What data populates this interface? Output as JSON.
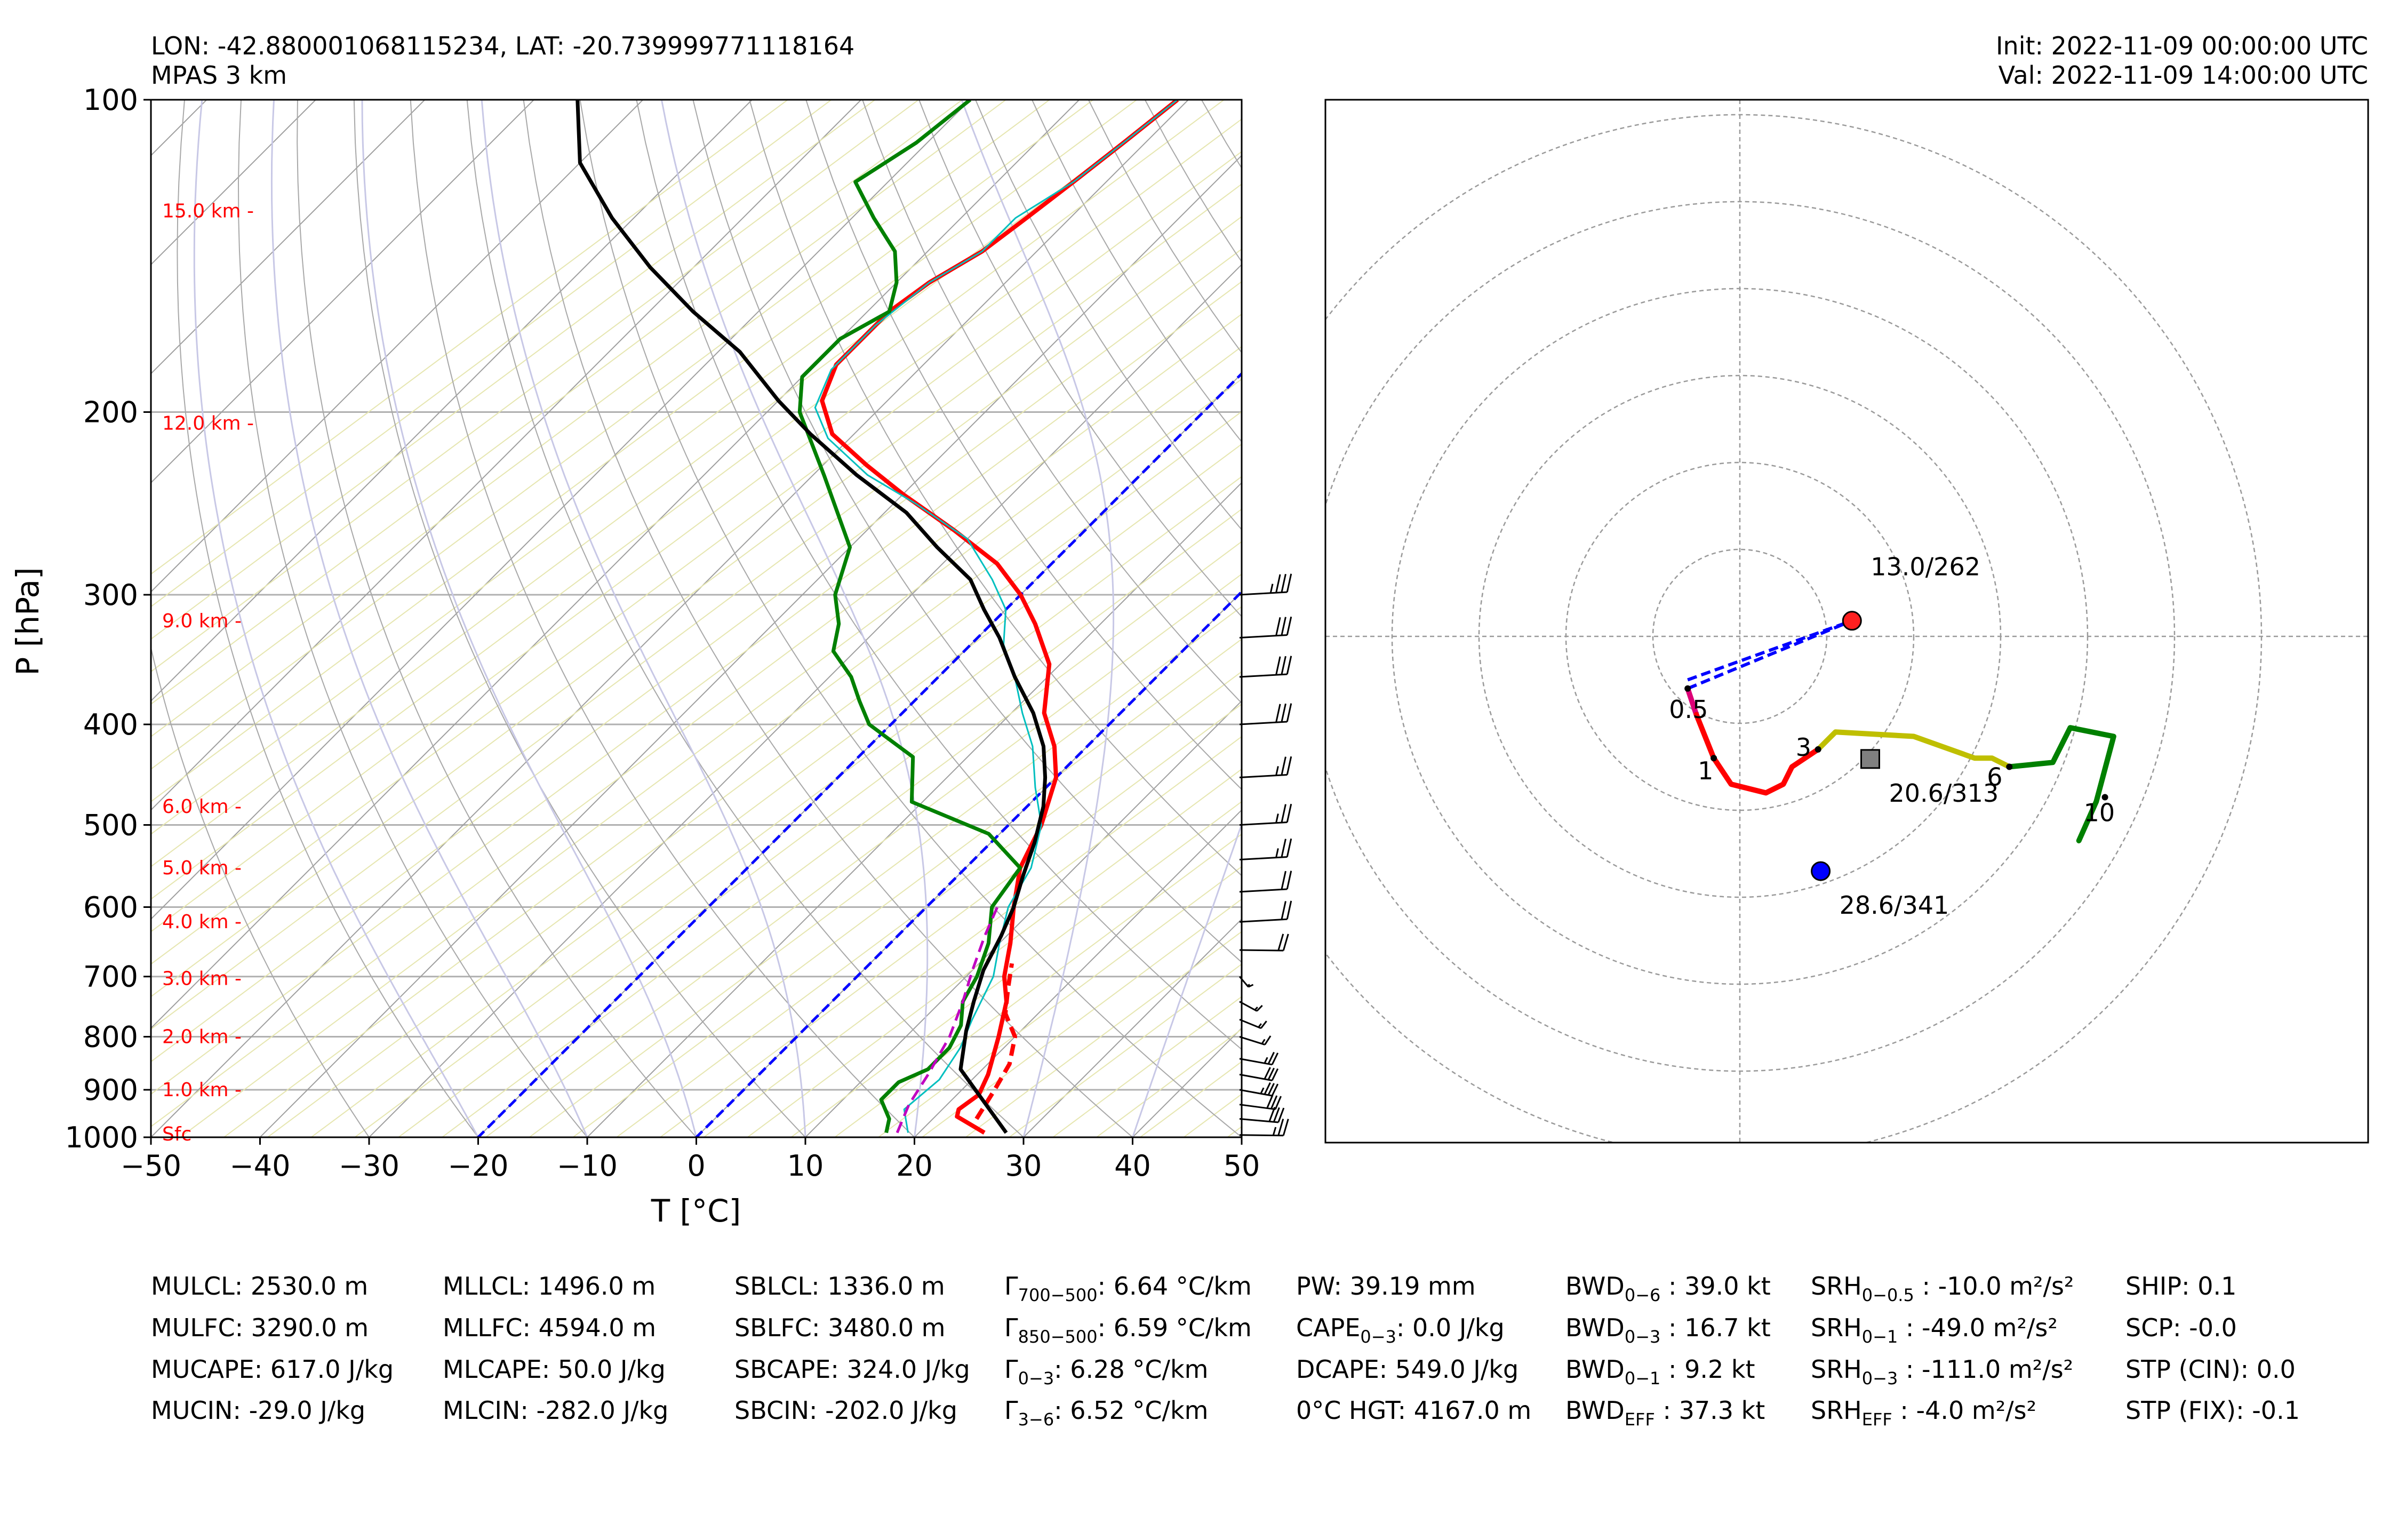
{
  "header": {
    "location": "LON: -42.880001068115234, LAT: -20.739999771118164",
    "model": "MPAS 3 km",
    "init": "Init: 2022-11-09 00:00:00 UTC",
    "valid": "Val: 2022-11-09 14:00:00 UTC"
  },
  "colors": {
    "temperature": "#ff0000",
    "dewpoint": "#008000",
    "parcel": "#000000",
    "virtual_temperature": "#00bfbf",
    "wetbulb": "#c000c0",
    "freezing_isotherm": "#0000ff",
    "height_labels": "#ff0000"
  },
  "chart_data": [
    {
      "type": "line",
      "name": "skew-t",
      "xlabel": "T [°C]",
      "ylabel": "P [hPa]",
      "xlim": [
        -50,
        50
      ],
      "ylim": [
        1000,
        100
      ],
      "y_scale": "log",
      "skew_degrees": 45,
      "x_ticks": [
        -50,
        -40,
        -30,
        -20,
        -10,
        0,
        10,
        20,
        30,
        40,
        50
      ],
      "x_tick_labels": [
        "−50",
        "−40",
        "−30",
        "−20",
        "−10",
        "0",
        "10",
        "20",
        "30",
        "40",
        "50"
      ],
      "y_ticks": [
        100,
        200,
        300,
        400,
        500,
        600,
        700,
        800,
        900,
        1000
      ],
      "y_tick_labels": [
        "100",
        "200",
        "300",
        "400",
        "500",
        "600",
        "700",
        "800",
        "900",
        "1000"
      ],
      "height_labels": [
        {
          "p": 993,
          "label": "Sfc"
        },
        {
          "p": 900,
          "label": "1.0 km -"
        },
        {
          "p": 800,
          "label": "2.0 km -"
        },
        {
          "p": 703,
          "label": "3.0 km -"
        },
        {
          "p": 620,
          "label": "4.0 km -"
        },
        {
          "p": 550,
          "label": "5.0 km -"
        },
        {
          "p": 480,
          "label": "6.0 km -"
        },
        {
          "p": 318,
          "label": "9.0 km -"
        },
        {
          "p": 205,
          "label": "12.0 km -"
        },
        {
          "p": 128,
          "label": "15.0 km -"
        }
      ],
      "series": [
        {
          "key": "temperature",
          "style": "solid",
          "points": [
            [
              26,
              990
            ],
            [
              22,
              955
            ],
            [
              21.5,
              940
            ],
            [
              22,
              910
            ],
            [
              21,
              870
            ],
            [
              18.5,
              800
            ],
            [
              16,
              740
            ],
            [
              13.5,
              700
            ],
            [
              11,
              650
            ],
            [
              8,
              600
            ],
            [
              5,
              550
            ],
            [
              3,
              500
            ],
            [
              0,
              450
            ],
            [
              -3,
              420
            ],
            [
              -7,
              390
            ],
            [
              -11,
              350
            ],
            [
              -16,
              320
            ],
            [
              -20,
              300
            ],
            [
              -25,
              280
            ],
            [
              -32,
              260
            ],
            [
              -40,
              240
            ],
            [
              -46,
              225
            ],
            [
              -52,
              210
            ],
            [
              -56,
              195
            ],
            [
              -58,
              180
            ],
            [
              -58,
              160
            ],
            [
              -57,
              150
            ],
            [
              -55,
              140
            ],
            [
              -54,
              130
            ],
            [
              -53,
              120
            ],
            [
              -52,
              110
            ],
            [
              -51,
              100
            ]
          ]
        },
        {
          "key": "temperature",
          "style": "dashed",
          "points": [
            [
              24,
              960
            ],
            [
              23,
              900
            ],
            [
              22,
              850
            ],
            [
              20,
              800
            ],
            [
              17,
              760
            ],
            [
              15,
              720
            ],
            [
              13,
              680
            ]
          ]
        },
        {
          "key": "virtual_temperature",
          "style": "solid",
          "points": [
            [
              19,
              990
            ],
            [
              16.5,
              940
            ],
            [
              17,
              880
            ],
            [
              16,
              820
            ],
            [
              14.5,
              770
            ],
            [
              12.5,
              700
            ],
            [
              10,
              650
            ],
            [
              7.5,
              600
            ],
            [
              6,
              550
            ],
            [
              3,
              500
            ],
            [
              -1,
              460
            ],
            [
              -5,
              420
            ],
            [
              -9,
              390
            ],
            [
              -13,
              360
            ],
            [
              -17,
              335
            ],
            [
              -20,
              310
            ],
            [
              -24,
              290
            ],
            [
              -30,
              265
            ],
            [
              -38,
              245
            ],
            [
              -45,
              230
            ],
            [
              -52,
              212
            ],
            [
              -56,
              198
            ],
            [
              -58,
              182
            ],
            [
              -58,
              165
            ],
            [
              -57,
              150
            ],
            [
              -55,
              140
            ],
            [
              -55,
              130
            ],
            [
              -53,
              120
            ],
            [
              -52,
              110
            ],
            [
              -51,
              100
            ]
          ]
        },
        {
          "key": "dewpoint",
          "style": "solid",
          "points": [
            [
              17,
              990
            ],
            [
              16,
              960
            ],
            [
              13.5,
              920
            ],
            [
              13.5,
              885
            ],
            [
              15,
              860
            ],
            [
              15,
              820
            ],
            [
              14,
              780
            ],
            [
              12,
              740
            ],
            [
              11,
              700
            ],
            [
              9,
              650
            ],
            [
              6,
              600
            ],
            [
              5,
              550
            ],
            [
              -1,
              510
            ],
            [
              -11,
              475
            ],
            [
              -15,
              430
            ],
            [
              -22,
              400
            ],
            [
              -25,
              380
            ],
            [
              -28,
              360
            ],
            [
              -32,
              340
            ],
            [
              -34,
              320
            ],
            [
              -37,
              300
            ],
            [
              -40,
              270
            ],
            [
              -49,
              230
            ],
            [
              -57,
              200
            ],
            [
              -60,
              185
            ],
            [
              -60,
              170
            ],
            [
              -58,
              160
            ],
            [
              -60,
              150
            ],
            [
              -63,
              140
            ],
            [
              -68,
              130
            ],
            [
              -73,
              120
            ],
            [
              -71,
              110
            ],
            [
              -70,
              100
            ]
          ]
        },
        {
          "key": "parcel",
          "style": "solid",
          "points": [
            [
              28,
              990
            ],
            [
              18,
              860
            ],
            [
              15,
              790
            ],
            [
              13,
              740
            ],
            [
              11,
              690
            ],
            [
              9.5,
              640
            ],
            [
              8,
              600
            ],
            [
              6,
              560
            ],
            [
              4,
              520
            ],
            [
              1.5,
              480
            ],
            [
              -1,
              450
            ],
            [
              -4,
              420
            ],
            [
              -8,
              390
            ],
            [
              -13,
              360
            ],
            [
              -18,
              330
            ],
            [
              -22,
              310
            ],
            [
              -26,
              290
            ],
            [
              -32,
              270
            ],
            [
              -38,
              250
            ],
            [
              -46,
              230
            ],
            [
              -54,
              210
            ],
            [
              -60,
              195
            ],
            [
              -68,
              175
            ],
            [
              -76,
              160
            ],
            [
              -84,
              145
            ],
            [
              -92,
              130
            ],
            [
              -100,
              115
            ],
            [
              -106,
              100
            ]
          ]
        },
        {
          "key": "wetbulb",
          "style": "dashed",
          "points": [
            [
              18,
              990
            ],
            [
              16.5,
              930
            ],
            [
              15.5,
              870
            ],
            [
              14,
              800
            ],
            [
              12,
              740
            ],
            [
              10,
              690
            ],
            [
              8,
              640
            ],
            [
              6.5,
              600
            ]
          ]
        }
      ],
      "freezing_isotherms_degC": [
        0,
        -20
      ],
      "wind_barbs": [
        {
          "p": 995,
          "speed_kt": 25,
          "dir": 300
        },
        {
          "p": 960,
          "speed_kt": 30,
          "dir": 310
        },
        {
          "p": 930,
          "speed_kt": 30,
          "dir": 315
        },
        {
          "p": 900,
          "speed_kt": 35,
          "dir": 320
        },
        {
          "p": 870,
          "speed_kt": 30,
          "dir": 320
        },
        {
          "p": 840,
          "speed_kt": 25,
          "dir": 320
        },
        {
          "p": 800,
          "speed_kt": 15,
          "dir": 330
        },
        {
          "p": 770,
          "speed_kt": 15,
          "dir": 335
        },
        {
          "p": 740,
          "speed_kt": 15,
          "dir": 340
        },
        {
          "p": 700,
          "speed_kt": 15,
          "dir": 350
        },
        {
          "p": 660,
          "speed_kt": 20,
          "dir": 300
        },
        {
          "p": 620,
          "speed_kt": 20,
          "dir": 290
        },
        {
          "p": 580,
          "speed_kt": 20,
          "dir": 290
        },
        {
          "p": 540,
          "speed_kt": 25,
          "dir": 290
        },
        {
          "p": 500,
          "speed_kt": 25,
          "dir": 290
        },
        {
          "p": 450,
          "speed_kt": 25,
          "dir": 290
        },
        {
          "p": 400,
          "speed_kt": 30,
          "dir": 290
        },
        {
          "p": 360,
          "speed_kt": 30,
          "dir": 290
        },
        {
          "p": 330,
          "speed_kt": 30,
          "dir": 290
        },
        {
          "p": 300,
          "speed_kt": 35,
          "dir": 290
        }
      ]
    },
    {
      "type": "line",
      "name": "hodograph",
      "grid": "polar dashed",
      "ring_spacing_kt": 10,
      "rings": [
        10,
        20,
        30,
        40,
        50,
        60
      ],
      "range_kt": 60,
      "segments": [
        {
          "color": "#dd0077",
          "points": [
            [
              -6,
              -6
            ],
            [
              -5,
              -9
            ]
          ]
        },
        {
          "color": "#ff0000",
          "points": [
            [
              -5,
              -9
            ],
            [
              -3,
              -14
            ],
            [
              -1,
              -17
            ],
            [
              3,
              -18
            ],
            [
              5,
              -17
            ],
            [
              6,
              -15
            ],
            [
              9,
              -13
            ]
          ]
        },
        {
          "color": "#bfbf00",
          "points": [
            [
              9,
              -13
            ],
            [
              11,
              -11
            ],
            [
              20,
              -11.5
            ],
            [
              27,
              -14
            ],
            [
              29,
              -14
            ],
            [
              31,
              -15
            ]
          ]
        },
        {
          "color": "#008000",
          "points": [
            [
              31,
              -15
            ],
            [
              36,
              -14.5
            ],
            [
              38,
              -10.5
            ],
            [
              43,
              -11.5
            ],
            [
              41,
              -19
            ],
            [
              39,
              -23.5
            ]
          ]
        }
      ],
      "height_markers": [
        {
          "label": "0.5",
          "u": -6,
          "v": -6
        },
        {
          "label": "1",
          "u": -3,
          "v": -14
        },
        {
          "label": "3",
          "u": 9,
          "v": -13
        },
        {
          "label": "6",
          "u": 31,
          "v": -15
        },
        {
          "label": "10",
          "u": 42,
          "v": -18.5
        }
      ],
      "storm_motion": [
        {
          "kind": "left",
          "label": "13.0/262",
          "u": 12.9,
          "v": 1.8,
          "color": "#ff2020"
        },
        {
          "kind": "right",
          "label": "28.6/341",
          "u": 9.3,
          "v": -27.0,
          "color": "#0000ff"
        },
        {
          "kind": "mean",
          "label": "20.6/313",
          "u": 15.0,
          "v": -14.1,
          "color": "#808080"
        }
      ],
      "shear_vectors": [
        {
          "from": [
            -6,
            -6
          ],
          "to": [
            12.9,
            1.8
          ],
          "color": "#0000ff"
        },
        {
          "from": [
            -6,
            -5
          ],
          "to": [
            12.9,
            1.8
          ],
          "color": "#0000ff"
        }
      ]
    }
  ],
  "params": [
    [
      "MULCL: 2530.0 m",
      "MULFC: 3290.0 m",
      "MUCAPE: 617.0 J/kg",
      "MUCIN: -29.0 J/kg"
    ],
    [
      "MLLCL: 1496.0 m",
      "MLLFC: 4594.0 m",
      "MLCAPE: 50.0 J/kg",
      "MLCIN: -282.0 J/kg"
    ],
    [
      "SBLCL: 1336.0 m",
      "SBLFC: 3480.0 m",
      "SBCAPE: 324.0 J/kg",
      "SBCIN: -202.0 J/kg"
    ],
    [
      "Γ700−500: 6.64 °C/km",
      "Γ850−500: 6.59 °C/km",
      "Γ0−3: 6.28 °C/km",
      "Γ3−6: 6.52 °C/km"
    ],
    [
      "PW: 39.19 mm",
      "CAPE0−3: 0.0 J/kg",
      "DCAPE: 549.0 J/kg",
      "0°C HGT: 4167.0 m"
    ],
    [
      "BWD0−6 : 39.0 kt",
      "BWD0−3 : 16.7 kt",
      "BWD0−1 : 9.2 kt",
      "BWDEFF : 37.3 kt"
    ],
    [
      "SRH0−0.5 : -10.0 m²/s²",
      "SRH0−1 : -49.0 m²/s²",
      "SRH0−3 : -111.0 m²/s²",
      "SRHEFF : -4.0 m²/s²"
    ],
    [
      "SHIP: 0.1",
      "SCP: -0.0",
      "STP (CIN): 0.0",
      "STP (FIX): -0.1"
    ]
  ]
}
